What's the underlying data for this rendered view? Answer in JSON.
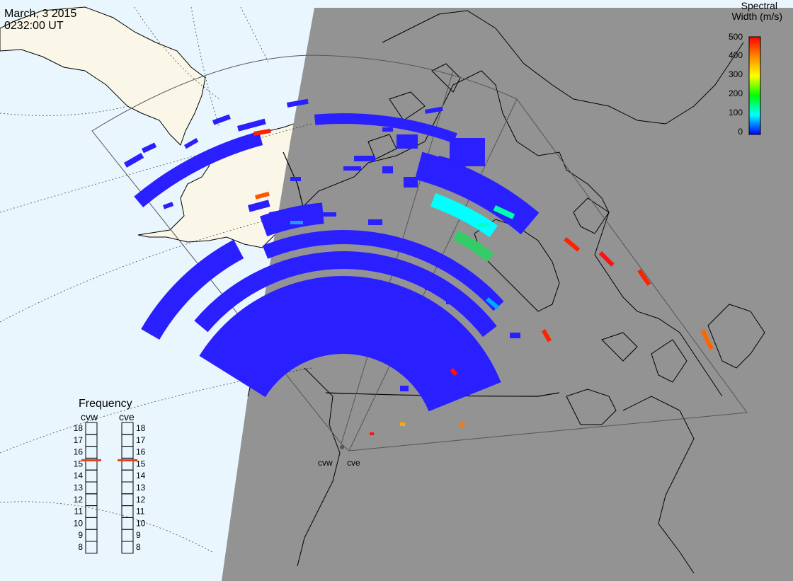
{
  "header": {
    "date": "March, 3 2015",
    "time": "0232:00 UT"
  },
  "colorbar": {
    "title_line1": "Spectral",
    "title_line2": "Width (m/s)",
    "ticks": [
      "500",
      "400",
      "300",
      "200",
      "100",
      "0"
    ],
    "max_value": 500,
    "colors": [
      "#ff0000",
      "#ff8800",
      "#ffff00",
      "#00ff00",
      "#00ffff",
      "#0000ff"
    ]
  },
  "frequency_panel": {
    "title": "Frequency",
    "radars": [
      {
        "name": "cvw",
        "selected": "15"
      },
      {
        "name": "cve",
        "selected": "15"
      }
    ],
    "levels": [
      "18",
      "17",
      "16",
      "15",
      "14",
      "13",
      "12",
      "11",
      "10",
      "9",
      "8"
    ],
    "marker_color": "#e0401a"
  },
  "map": {
    "sunlit_color": "#e9f6fd",
    "dark_color": "#939393",
    "land_color": "#faf7e8",
    "scatter_color": "#2a1fff"
  },
  "radar_sites": [
    {
      "name": "cvw"
    },
    {
      "name": "cve"
    }
  ]
}
